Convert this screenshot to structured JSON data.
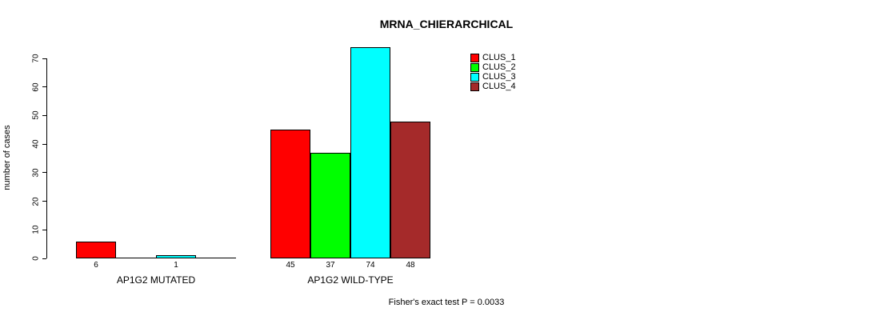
{
  "chart_data": {
    "type": "bar",
    "title": "MRNA_CHIERARCHICAL",
    "ylabel": "number of cases",
    "xlabel": "",
    "ylim": [
      0,
      70
    ],
    "yticks": [
      0,
      10,
      20,
      30,
      40,
      50,
      60,
      70
    ],
    "grid": false,
    "legend_position": "top-right",
    "categories": [
      "AP1G2 MUTATED",
      "AP1G2 WILD-TYPE"
    ],
    "series": [
      {
        "name": "CLUS_1",
        "color": "#ff0000",
        "values": [
          6,
          45
        ]
      },
      {
        "name": "CLUS_2",
        "color": "#00ff00",
        "values": [
          0,
          37
        ]
      },
      {
        "name": "CLUS_3",
        "color": "#00ffff",
        "values": [
          1,
          74
        ]
      },
      {
        "name": "CLUS_4",
        "color": "#a52a2a",
        "values": [
          0,
          48
        ]
      }
    ],
    "bar_value_labels": [
      [
        "6",
        "",
        "1",
        ""
      ],
      [
        "45",
        "37",
        "74",
        "48"
      ]
    ],
    "footnote": "Fisher's exact test P = 0.0033",
    "axis_color": "#000000",
    "background": "#ffffff"
  }
}
